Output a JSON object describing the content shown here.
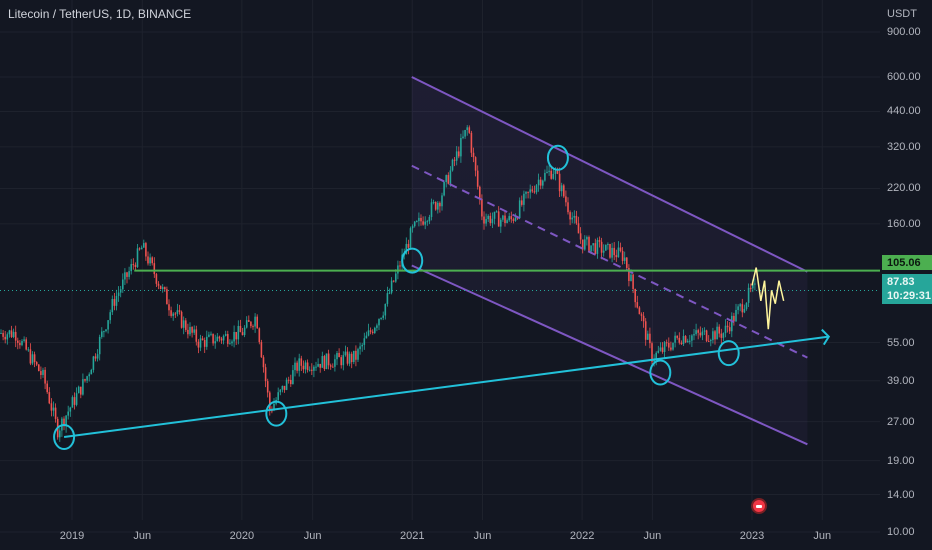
{
  "symbol": {
    "title": "Litecoin / TetherUS, 1D, BINANCE"
  },
  "price_axis": {
    "unit": "USDT",
    "labels": [
      "900.00",
      "600.00",
      "440.00",
      "320.00",
      "220.00",
      "160.00",
      "55.00",
      "39.00",
      "27.00",
      "19.00",
      "14.00",
      "10.00"
    ],
    "values": [
      900,
      600,
      440,
      320,
      220,
      160,
      55,
      39,
      27,
      19,
      14,
      10
    ]
  },
  "time_axis": {
    "labels": [
      "2019",
      "Jun",
      "2020",
      "Jun",
      "2021",
      "Jun",
      "2022",
      "Jun",
      "2023",
      "Jun"
    ]
  },
  "badges": {
    "resistance_price": "105.06",
    "last_price": "87.83",
    "countdown": "10:29:31"
  },
  "colors": {
    "background": "#131722",
    "candle_up": "#26a69a",
    "candle_down": "#ef5350",
    "channel": "#7e57c2",
    "support": "#22c1d9",
    "resistance": "#4caf50",
    "projection": "#fff59d"
  },
  "chart_data": {
    "type": "candlestick",
    "title": "Litecoin / TetherUS, 1D, BINANCE",
    "ylabel": "USDT",
    "log_scale": true,
    "ylim": [
      8.5,
      1200
    ],
    "x_range": [
      "2018-09",
      "2023-08"
    ],
    "close_path": [
      {
        "date": "2018-09",
        "close": 60
      },
      {
        "date": "2018-11",
        "close": 40
      },
      {
        "date": "2018-12",
        "close": 25
      },
      {
        "date": "2019-02",
        "close": 40
      },
      {
        "date": "2019-04",
        "close": 80
      },
      {
        "date": "2019-06",
        "close": 130
      },
      {
        "date": "2019-08",
        "close": 75
      },
      {
        "date": "2019-10",
        "close": 55
      },
      {
        "date": "2020-01",
        "close": 60
      },
      {
        "date": "2020-02",
        "close": 70
      },
      {
        "date": "2020-03",
        "close": 30
      },
      {
        "date": "2020-05",
        "close": 45
      },
      {
        "date": "2020-09",
        "close": 48
      },
      {
        "date": "2020-11",
        "close": 75
      },
      {
        "date": "2021-01",
        "close": 150
      },
      {
        "date": "2021-03",
        "close": 200
      },
      {
        "date": "2021-05",
        "close": 385
      },
      {
        "date": "2021-06",
        "close": 170
      },
      {
        "date": "2021-08",
        "close": 165
      },
      {
        "date": "2021-10",
        "close": 240
      },
      {
        "date": "2021-11",
        "close": 260
      },
      {
        "date": "2022-01",
        "close": 135
      },
      {
        "date": "2022-04",
        "close": 120
      },
      {
        "date": "2022-06",
        "close": 48
      },
      {
        "date": "2022-08",
        "close": 58
      },
      {
        "date": "2022-11",
        "close": 60
      },
      {
        "date": "2023-01",
        "close": 88
      }
    ],
    "annotations": {
      "resistance_level": 105.06,
      "last_price": 87.83,
      "channel_upper": [
        {
          "date": "2020-12-31",
          "price": 600
        },
        {
          "date": "2023-04-30",
          "price": 104
        }
      ],
      "channel_mid": [
        {
          "date": "2020-12-31",
          "price": 270
        },
        {
          "date": "2023-04-30",
          "price": 48
        }
      ],
      "channel_lower": [
        {
          "date": "2020-12-31",
          "price": 110
        },
        {
          "date": "2023-04-30",
          "price": 22
        }
      ],
      "support_line": [
        {
          "date": "2018-12-15",
          "price": 23.5
        },
        {
          "date": "2023-06-15",
          "price": 58
        }
      ],
      "circled_points": [
        {
          "date": "2018-12-15",
          "price": 23.5
        },
        {
          "date": "2020-03-15",
          "price": 29
        },
        {
          "date": "2021-01-01",
          "price": 115
        },
        {
          "date": "2021-11-10",
          "price": 290
        },
        {
          "date": "2022-06-18",
          "price": 42
        },
        {
          "date": "2022-11-12",
          "price": 50
        }
      ],
      "projection_path": [
        {
          "date": "2023-01-01",
          "price": 92
        },
        {
          "date": "2023-01-10",
          "price": 108
        },
        {
          "date": "2023-01-20",
          "price": 80
        },
        {
          "date": "2023-01-28",
          "price": 96
        },
        {
          "date": "2023-02-05",
          "price": 62
        },
        {
          "date": "2023-02-12",
          "price": 88
        },
        {
          "date": "2023-02-20",
          "price": 78
        },
        {
          "date": "2023-02-28",
          "price": 96
        },
        {
          "date": "2023-03-10",
          "price": 80
        }
      ]
    }
  }
}
